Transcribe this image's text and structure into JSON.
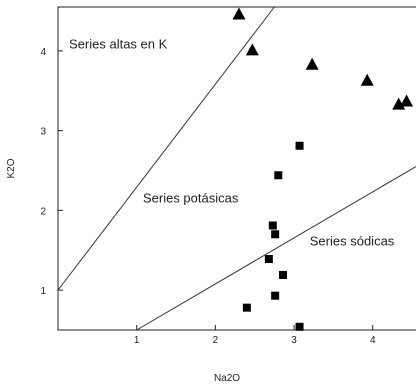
{
  "chart_data": {
    "type": "scatter",
    "title": "",
    "xlabel": "Na2O",
    "ylabel": "K2O",
    "xlim": [
      0,
      4.55
    ],
    "ylim": [
      0.5,
      4.55
    ],
    "xticks": [
      1,
      2,
      3,
      4
    ],
    "yticks": [
      1,
      2,
      3,
      4
    ],
    "grid": false,
    "series": [
      {
        "marker": "triangle",
        "color": "#000000",
        "points": [
          {
            "x": 2.3,
            "y": 4.45
          },
          {
            "x": 2.47,
            "y": 4.0
          },
          {
            "x": 3.23,
            "y": 3.82
          },
          {
            "x": 3.93,
            "y": 3.62
          },
          {
            "x": 4.33,
            "y": 3.32
          },
          {
            "x": 4.43,
            "y": 3.36
          }
        ]
      },
      {
        "marker": "square",
        "color": "#000000",
        "points": [
          {
            "x": 3.07,
            "y": 2.81
          },
          {
            "x": 2.8,
            "y": 2.44
          },
          {
            "x": 2.73,
            "y": 1.81
          },
          {
            "x": 2.76,
            "y": 1.7
          },
          {
            "x": 2.68,
            "y": 1.39
          },
          {
            "x": 2.86,
            "y": 1.19
          },
          {
            "x": 2.76,
            "y": 0.93
          },
          {
            "x": 2.4,
            "y": 0.78
          },
          {
            "x": 3.07,
            "y": 0.54
          }
        ]
      }
    ],
    "boundary_lines": [
      {
        "x1": 0,
        "y1": 1.0,
        "x2": 2.75,
        "y2": 4.55
      },
      {
        "x1": 1.0,
        "y1": 0.5,
        "x2": 4.55,
        "y2": 2.55
      }
    ],
    "annotations": [
      {
        "text": "Series altas en K",
        "x": 0.14,
        "y": 4.03
      },
      {
        "text": "Series potásicas",
        "x": 1.08,
        "y": 2.1
      },
      {
        "text": "Series sódicas",
        "x": 3.2,
        "y": 1.56
      }
    ]
  }
}
